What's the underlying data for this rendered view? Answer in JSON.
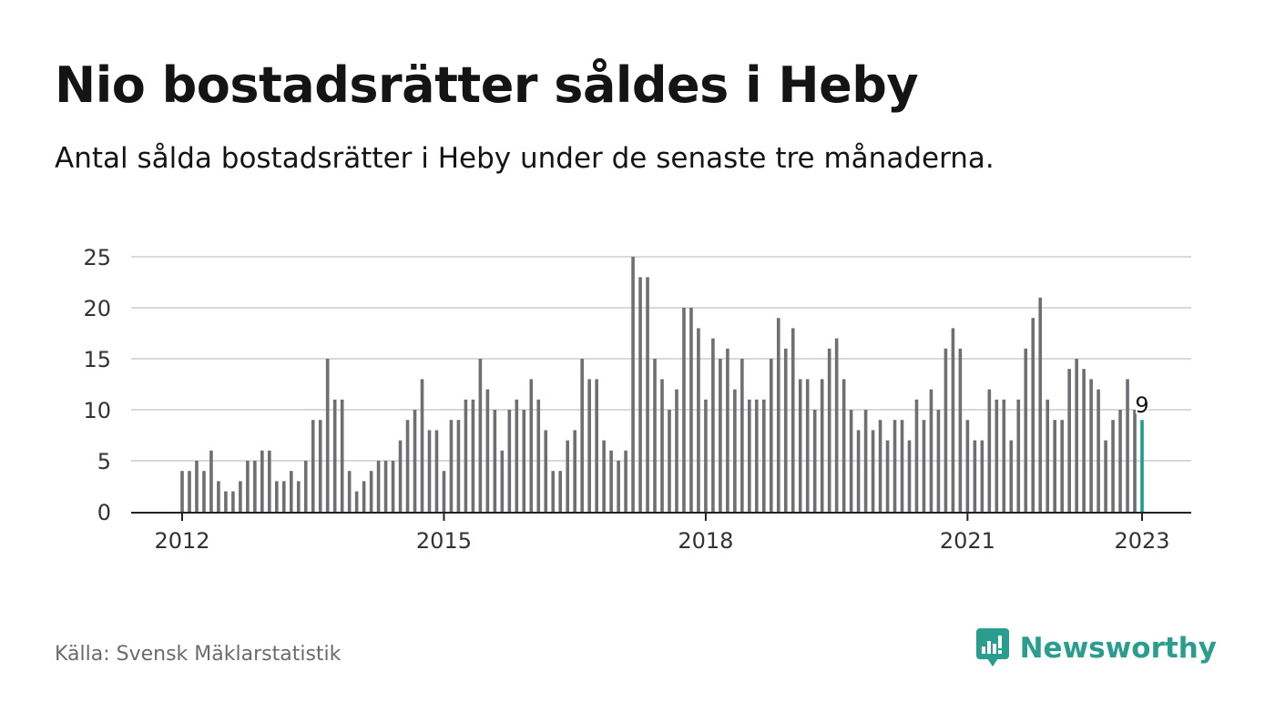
{
  "header": {
    "title": "Nio bostadsrätter såldes i Heby",
    "subtitle": "Antal sålda bostadsrätter i Heby under de senaste tre månaderna."
  },
  "footer": {
    "source": "Källa: Svensk Mäklarstatistik",
    "brand": "Newsworthy",
    "brand_icon": "bar-chart-speech-bubble-icon"
  },
  "colors": {
    "bar": "#6e6e73",
    "highlight": "#1a9e8f",
    "grid": "#d9d9d9",
    "axis": "#222222",
    "brand": "#2a9d8f"
  },
  "chart_data": {
    "type": "bar",
    "title": "Nio bostadsrätter såldes i Heby",
    "subtitle": "Antal sålda bostadsrätter i Heby under de senaste tre månaderna.",
    "xlabel": "",
    "ylabel": "",
    "ylim": [
      0,
      25
    ],
    "yticks": [
      0,
      5,
      10,
      15,
      20,
      25
    ],
    "xticks": [
      "2012",
      "2015",
      "2018",
      "2021",
      "2023"
    ],
    "grid": true,
    "x_start": "2012-01",
    "x_end": "2023-01",
    "frequency": "monthly",
    "values": [
      4,
      4,
      5,
      4,
      6,
      3,
      2,
      2,
      3,
      5,
      5,
      6,
      6,
      3,
      3,
      4,
      3,
      5,
      9,
      9,
      15,
      11,
      11,
      4,
      2,
      3,
      4,
      5,
      5,
      5,
      7,
      9,
      10,
      13,
      8,
      8,
      4,
      9,
      9,
      11,
      11,
      15,
      12,
      10,
      6,
      10,
      11,
      10,
      13,
      11,
      8,
      4,
      4,
      7,
      8,
      15,
      13,
      13,
      7,
      6,
      5,
      6,
      25,
      23,
      23,
      15,
      13,
      10,
      12,
      20,
      20,
      18,
      11,
      17,
      15,
      16,
      12,
      15,
      11,
      11,
      11,
      15,
      19,
      16,
      18,
      13,
      13,
      10,
      13,
      16,
      17,
      13,
      10,
      8,
      10,
      8,
      9,
      7,
      9,
      9,
      7,
      11,
      9,
      12,
      10,
      16,
      18,
      16,
      9,
      7,
      7,
      12,
      11,
      11,
      7,
      11,
      16,
      19,
      21,
      11,
      9,
      9,
      14,
      15,
      14,
      13,
      12,
      7,
      9,
      10,
      13,
      10,
      9
    ],
    "highlight_last": true,
    "annotations": [
      {
        "x": "2023-01",
        "text": "9"
      }
    ]
  }
}
